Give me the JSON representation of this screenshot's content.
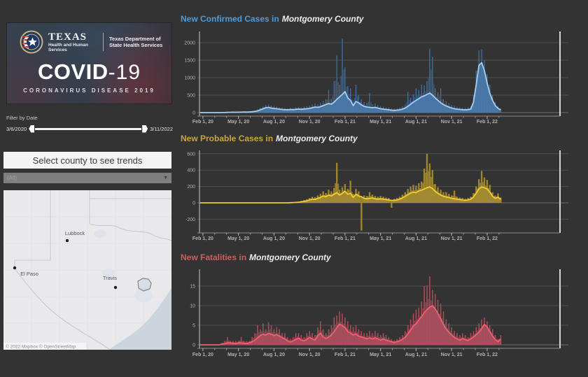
{
  "banner": {
    "org1_title": "TEXAS",
    "org1_sub": "Health and Human Services",
    "org2": "Texas Department of State Health Services",
    "covid_main": "COVID",
    "covid_suffix": "-19",
    "covid_sub": "CORONAVIRUS DISEASE 2019"
  },
  "filter": {
    "label": "Filter by Date",
    "start_date": "3/6/2020",
    "end_date": "3/11/2022"
  },
  "county_selector": {
    "header": "Select county to see trends",
    "dropdown_value": "(All)"
  },
  "map": {
    "attribution": "© 2022 Mapbox © OpenStreetMap",
    "cities": [
      {
        "name": "Lubbock",
        "dot": [
          91,
          72
        ],
        "label": [
          102,
          64
        ]
      },
      {
        "name": "El Paso",
        "dot": [
          16,
          111
        ],
        "label": [
          37,
          122
        ]
      },
      {
        "name": "Travis",
        "dot": [
          160,
          139
        ],
        "label": [
          152,
          128
        ]
      }
    ]
  },
  "chart_data": [
    {
      "type": "bar",
      "render": "daily bars + 7-day average line + area",
      "title_prefix": "New Confirmed Cases in",
      "title_county": "Montgomery County",
      "accent": "#4e9bd8",
      "bar_color": "#426f9e",
      "area_color": "#4a7aab",
      "line_color": "#a9cdee",
      "ylim": [
        0,
        2200
      ],
      "yticks": [
        0,
        500,
        1000,
        1500,
        2000
      ],
      "x_tick_labels": [
        "Feb 1, 20",
        "May 1, 20",
        "Aug 1, 20",
        "Nov 1, 20",
        "Feb 1, 21",
        "May 1, 21",
        "Aug 1, 21",
        "Nov 1, 21",
        "Feb 1, 22"
      ],
      "x_tick_weeks": [
        1,
        14,
        27,
        40,
        53,
        66,
        79,
        92,
        105
      ],
      "weeks_start": "2020-01-25",
      "bars": [
        0,
        0,
        0,
        0,
        0,
        0,
        0,
        0,
        5,
        10,
        15,
        18,
        20,
        18,
        20,
        28,
        30,
        25,
        35,
        45,
        60,
        90,
        140,
        180,
        220,
        230,
        200,
        190,
        170,
        150,
        140,
        130,
        120,
        140,
        130,
        150,
        160,
        150,
        170,
        180,
        200,
        230,
        260,
        240,
        280,
        330,
        380,
        650,
        400,
        900,
        1630,
        800,
        2120,
        1300,
        760,
        700,
        350,
        800,
        500,
        380,
        300,
        280,
        560,
        240,
        260,
        220,
        190,
        170,
        150,
        140,
        120,
        110,
        120,
        140,
        180,
        230,
        600,
        420,
        520,
        700,
        650,
        800,
        780,
        900,
        1830,
        1600,
        700,
        580,
        700,
        380,
        320,
        270,
        220,
        190,
        170,
        150,
        140,
        130,
        150,
        180,
        500,
        1200,
        1780,
        1800,
        1500,
        1100,
        800,
        500,
        300,
        180,
        120
      ],
      "line": [
        0,
        0,
        0,
        0,
        0,
        0,
        0,
        0,
        2,
        5,
        8,
        10,
        12,
        10,
        12,
        15,
        18,
        15,
        20,
        25,
        35,
        50,
        80,
        110,
        140,
        150,
        130,
        120,
        110,
        100,
        90,
        85,
        80,
        90,
        85,
        95,
        100,
        95,
        105,
        110,
        120,
        140,
        160,
        150,
        170,
        200,
        230,
        260,
        240,
        300,
        380,
        450,
        520,
        600,
        420,
        350,
        200,
        320,
        280,
        220,
        180,
        160,
        150,
        140,
        150,
        130,
        110,
        100,
        90,
        80,
        70,
        65,
        70,
        80,
        100,
        130,
        180,
        240,
        300,
        350,
        400,
        450,
        480,
        520,
        560,
        500,
        420,
        350,
        280,
        230,
        190,
        160,
        130,
        110,
        100,
        90,
        85,
        80,
        85,
        100,
        300,
        800,
        1350,
        1430,
        1200,
        850,
        550,
        350,
        200,
        120,
        80
      ]
    },
    {
      "type": "bar",
      "render": "daily bars + 7-day average line + area",
      "title_prefix": "New Probable Cases in",
      "title_county": "Montgomery County",
      "accent": "#c9a63a",
      "bar_color": "#9c852c",
      "area_color": "#a28b31",
      "line_color": "#f3cc35",
      "ylim": [
        -350,
        650
      ],
      "yticks": [
        -200,
        0,
        200,
        400,
        600
      ],
      "x_tick_labels": [
        "Feb 1, 20",
        "May 1, 20",
        "Aug 1, 20",
        "Nov 1, 20",
        "Feb 1, 21",
        "May 1, 21",
        "Aug 1, 21",
        "Nov 1, 21",
        "Feb 1, 22"
      ],
      "x_tick_weeks": [
        1,
        14,
        27,
        40,
        53,
        66,
        79,
        92,
        105
      ],
      "weeks_start": "2020-01-25",
      "bars": [
        0,
        0,
        0,
        0,
        0,
        0,
        0,
        0,
        0,
        0,
        0,
        0,
        0,
        0,
        0,
        0,
        0,
        0,
        0,
        0,
        0,
        0,
        0,
        0,
        0,
        0,
        0,
        0,
        0,
        0,
        0,
        0,
        0,
        5,
        6,
        10,
        15,
        25,
        35,
        45,
        60,
        75,
        70,
        90,
        110,
        140,
        120,
        160,
        140,
        180,
        490,
        160,
        190,
        230,
        170,
        270,
        110,
        170,
        140,
        -340,
        90,
        85,
        130,
        100,
        85,
        75,
        85,
        75,
        65,
        60,
        -60,
        50,
        60,
        75,
        100,
        130,
        170,
        200,
        220,
        210,
        240,
        260,
        420,
        600,
        480,
        400,
        230,
        190,
        160,
        130,
        130,
        110,
        90,
        150,
        75,
        65,
        60,
        50,
        60,
        75,
        120,
        200,
        290,
        390,
        310,
        280,
        220,
        130,
        90,
        115,
        65
      ],
      "line": [
        0,
        0,
        0,
        0,
        0,
        0,
        0,
        0,
        0,
        0,
        0,
        0,
        0,
        0,
        0,
        0,
        0,
        0,
        0,
        0,
        0,
        0,
        0,
        0,
        0,
        0,
        0,
        0,
        0,
        0,
        0,
        0,
        0,
        2,
        3,
        5,
        8,
        12,
        18,
        25,
        35,
        45,
        42,
        55,
        65,
        85,
        75,
        95,
        85,
        105,
        125,
        95,
        115,
        140,
        105,
        115,
        65,
        105,
        85,
        75,
        55,
        50,
        55,
        60,
        50,
        45,
        50,
        45,
        40,
        35,
        30,
        30,
        35,
        45,
        60,
        80,
        100,
        120,
        130,
        125,
        145,
        155,
        170,
        185,
        195,
        175,
        140,
        115,
        95,
        80,
        70,
        65,
        55,
        50,
        45,
        40,
        35,
        30,
        35,
        45,
        70,
        120,
        170,
        195,
        185,
        170,
        130,
        80,
        55,
        70,
        40
      ]
    },
    {
      "type": "bar",
      "render": "daily bars + 7-day average line + area",
      "title_prefix": "New Fatalities in",
      "title_county": "Montgomery County",
      "accent": "#c95f5f",
      "bar_color": "#a84b59",
      "area_color": "#a94f5e",
      "line_color": "#f0606f",
      "ylim": [
        0,
        18.5
      ],
      "yticks": [
        0,
        5,
        10,
        15
      ],
      "x_tick_labels": [
        "Feb 1, 20",
        "May 1, 20",
        "Aug 1, 20",
        "Nov 1, 20",
        "Feb 1, 21",
        "May 1, 21",
        "Aug 1, 21",
        "Nov 1, 21",
        "Feb 1, 22"
      ],
      "x_tick_weeks": [
        1,
        14,
        27,
        40,
        53,
        66,
        79,
        92,
        105
      ],
      "weeks_start": "2020-01-25",
      "bars": [
        0,
        0,
        0,
        0,
        0,
        0,
        0,
        0,
        0.5,
        1,
        2,
        1,
        1,
        1,
        1,
        2,
        1,
        1,
        1,
        2,
        3,
        5,
        4,
        5.5,
        4,
        5.8,
        5,
        4,
        4.5,
        4,
        3,
        3,
        2,
        1.5,
        2,
        3,
        3,
        2.5,
        2,
        3,
        3.5,
        3,
        2.5,
        4.5,
        6,
        4,
        3,
        4,
        5,
        7,
        7.5,
        8.5,
        8,
        7,
        6,
        5,
        4.5,
        5,
        4,
        3.5,
        3,
        3,
        3.5,
        3,
        3.5,
        3,
        2.5,
        3,
        2.5,
        2,
        1.5,
        1.2,
        1.5,
        2,
        2.5,
        3.5,
        5,
        6.5,
        8,
        9,
        9.5,
        11,
        15,
        15.2,
        17.5,
        14,
        13,
        11.5,
        10.5,
        8.5,
        6.5,
        5.5,
        4.5,
        3.5,
        3,
        2.5,
        3,
        2.5,
        2,
        3,
        3.5,
        4.5,
        5.5,
        6.5,
        7,
        6,
        5,
        4,
        2.5,
        1.5,
        2.5
      ],
      "line": [
        0,
        0,
        0,
        0,
        0,
        0,
        0,
        0,
        0.2,
        0.3,
        0.5,
        0.5,
        0.4,
        0.3,
        0.5,
        0.5,
        0.4,
        0.3,
        0.5,
        0.8,
        1.2,
        1.8,
        2.4,
        2.7,
        2.5,
        2.9,
        2.7,
        2.4,
        2.6,
        2.2,
        1.8,
        1.5,
        1.0,
        0.7,
        1.0,
        1.4,
        1.7,
        1.2,
        1.0,
        1.4,
        1.9,
        1.5,
        1.2,
        2.3,
        3.0,
        2.0,
        1.6,
        2.0,
        2.5,
        3.4,
        4.4,
        5.3,
        4.9,
        4.4,
        3.4,
        3.0,
        2.5,
        2.8,
        2.2,
        2.0,
        1.8,
        1.5,
        1.8,
        1.5,
        1.8,
        1.5,
        1.2,
        1.5,
        1.2,
        1.0,
        0.8,
        0.6,
        0.8,
        1.0,
        1.4,
        1.9,
        2.8,
        3.8,
        4.8,
        5.4,
        6.3,
        7.2,
        8.2,
        9.0,
        9.6,
        10.0,
        9.2,
        8.0,
        6.6,
        5.2,
        4.0,
        3.2,
        2.5,
        1.9,
        1.5,
        1.2,
        1.6,
        1.3,
        1.1,
        1.5,
        2.0,
        2.6,
        3.2,
        4.2,
        5.2,
        4.6,
        3.4,
        2.2,
        1.3,
        0.8,
        1.5
      ]
    }
  ]
}
